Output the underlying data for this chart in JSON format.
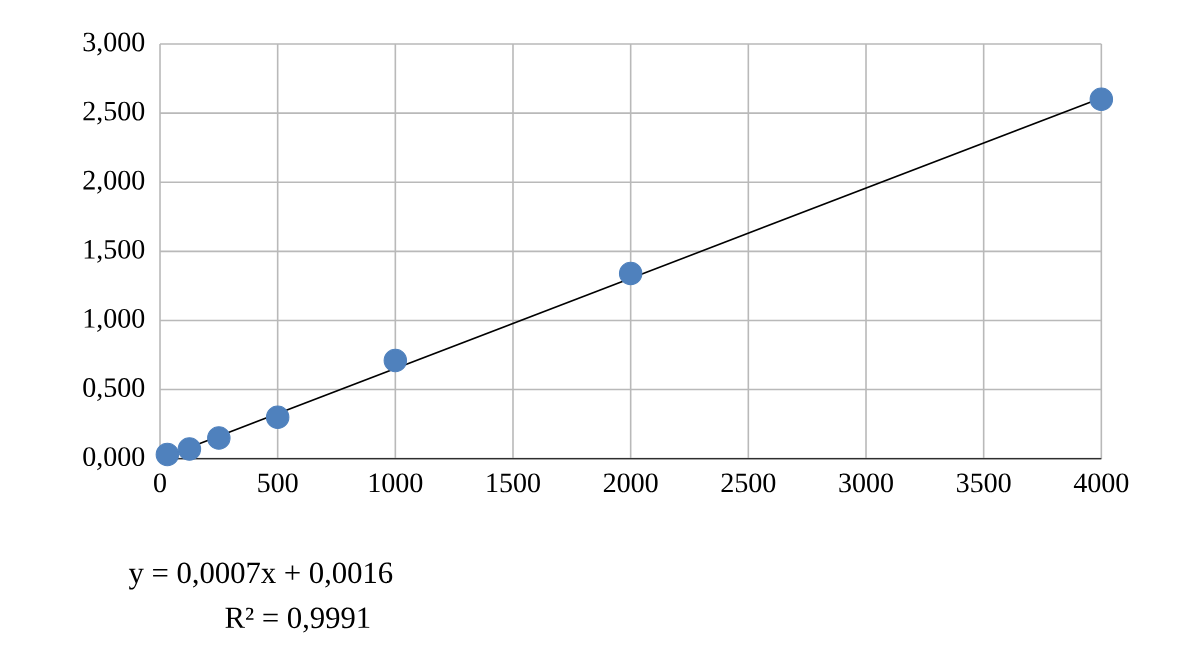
{
  "chart_data": {
    "type": "scatter",
    "series": [
      {
        "type": "scatter",
        "color": "#4f81bd",
        "x": [
          31.25,
          125,
          250,
          500,
          1000,
          2000,
          4000
        ],
        "values": [
          0.03,
          0.07,
          0.15,
          0.3,
          0.71,
          1.34,
          2.6
        ]
      },
      {
        "type": "line",
        "marker": "none",
        "color": "#000000",
        "x": [
          31.25,
          4000
        ],
        "values": [
          0.02,
          2.61
        ]
      }
    ],
    "xlim": [
      0,
      4000
    ],
    "xticks": [
      0,
      500,
      1000,
      1500,
      2000,
      2500,
      3000,
      3500,
      4000
    ],
    "ylim": [
      0,
      3
    ],
    "yticks": [
      {
        "value": 0,
        "label": "0,000"
      },
      {
        "value": 0.5,
        "label": "0,500"
      },
      {
        "value": 1,
        "label": "1,000"
      },
      {
        "value": 1.5,
        "label": "1,500"
      },
      {
        "value": 2,
        "label": "2,000"
      },
      {
        "value": 2.5,
        "label": "2,500"
      },
      {
        "value": 3,
        "label": "3,000"
      }
    ],
    "grid": true,
    "marker": "circle",
    "annotations": [
      "y = 0,0007x + 0,0016",
      "R² = 0,9991"
    ]
  }
}
